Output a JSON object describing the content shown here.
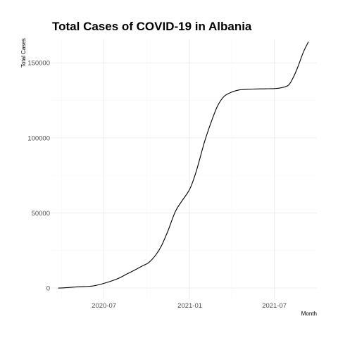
{
  "chart_data": {
    "type": "line",
    "title": "Total Cases of COVID-19 in Albania",
    "xlabel": "Month",
    "ylabel": "Total Cases",
    "x_ticks": [
      "2020-07",
      "2021-01",
      "2021-07"
    ],
    "y_ticks": [
      "0",
      "50000",
      "100000",
      "150000"
    ],
    "xlim": [
      "2020-03-09",
      "2021-09-30"
    ],
    "ylim": [
      -7000,
      166000
    ],
    "grid": true,
    "legend": "none",
    "series": [
      {
        "color": "#000000",
        "x": [
          "2020-03-25",
          "2020-04-15",
          "2020-05-01",
          "2020-05-20",
          "2020-06-05",
          "2020-06-20",
          "2020-07-05",
          "2020-07-20",
          "2020-08-05",
          "2020-08-20",
          "2020-09-05",
          "2020-09-20",
          "2020-10-05",
          "2020-10-20",
          "2020-11-01",
          "2020-11-15",
          "2020-12-01",
          "2020-12-15",
          "2021-01-01",
          "2021-01-15",
          "2021-02-01",
          "2021-02-15",
          "2021-03-01",
          "2021-03-15",
          "2021-04-01",
          "2021-04-15",
          "2021-05-01",
          "2021-05-15",
          "2021-06-01",
          "2021-06-15",
          "2021-07-01",
          "2021-07-15",
          "2021-07-31",
          "2021-08-10",
          "2021-08-20",
          "2021-09-01",
          "2021-09-12"
        ],
        "y": [
          0,
          300,
          700,
          1000,
          1300,
          2200,
          3500,
          5000,
          7000,
          9500,
          12000,
          14500,
          17000,
          22000,
          28000,
          38000,
          51000,
          58000,
          66000,
          78000,
          97000,
          110000,
          121000,
          127500,
          130500,
          131800,
          132300,
          132500,
          132600,
          132700,
          132800,
          133300,
          135000,
          140000,
          147000,
          157000,
          164000
        ]
      }
    ]
  }
}
